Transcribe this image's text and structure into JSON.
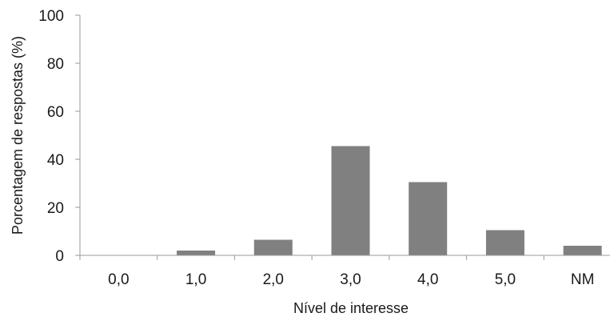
{
  "chart_data": {
    "type": "bar",
    "categories": [
      "0,0",
      "1,0",
      "2,0",
      "3,0",
      "4,0",
      "5,0",
      "NM"
    ],
    "values": [
      0,
      2,
      6.5,
      45.5,
      30.5,
      10.5,
      4
    ],
    "xlabel": "Nível de interesse",
    "ylabel": "Porcentagem de respostas (%)",
    "ylim": [
      0,
      100
    ],
    "yticks": [
      0,
      20,
      40,
      60,
      80,
      100
    ],
    "grid": false,
    "bar_color": "#808080"
  }
}
